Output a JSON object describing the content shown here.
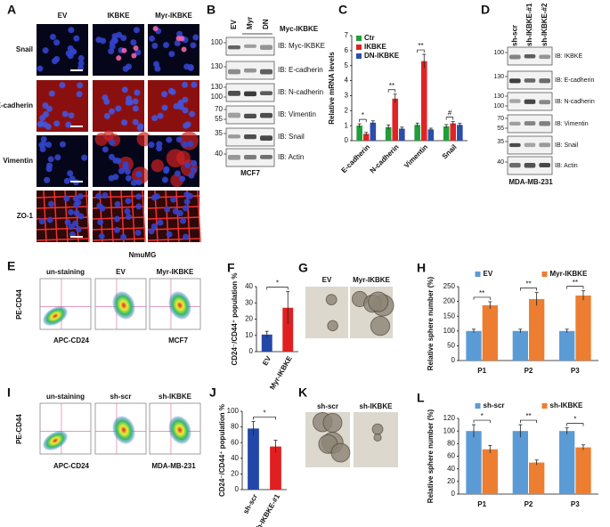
{
  "panels": {
    "A": {
      "letter": "A",
      "columns": [
        "EV",
        "IKBKE",
        "Myr-IKBKE"
      ],
      "rows": [
        "Snail",
        "E-cadherin",
        "Vimentin",
        "ZO-1"
      ],
      "caption": "NmuMG"
    },
    "B": {
      "letter": "B",
      "lanes": [
        "EV",
        "Myr",
        "DN"
      ],
      "group": "Myc-IKBKE",
      "blots": [
        {
          "label": "IB: Myc-IKBKE",
          "markers": [
            "100"
          ]
        },
        {
          "label": "IB: E-cadherin",
          "markers": [
            "130"
          ]
        },
        {
          "label": "IB: N-cadherin",
          "markers": [
            "130",
            "100"
          ]
        },
        {
          "label": "IB: Vimentin",
          "markers": [
            "70",
            "55"
          ]
        },
        {
          "label": "IB: Snail",
          "markers": [
            "35"
          ]
        },
        {
          "label": "IB: Actin",
          "markers": [
            "40"
          ]
        }
      ],
      "caption": "MCF7"
    },
    "C": {
      "letter": "C"
    },
    "D": {
      "letter": "D",
      "lanes": [
        "sh-scr",
        "sh-IKBKE-#1",
        "sh-IKBKE-#2"
      ],
      "blots": [
        {
          "label": "IB: IKBKE",
          "markers": [
            "100"
          ]
        },
        {
          "label": "IB: E-cadherin",
          "markers": [
            "130"
          ]
        },
        {
          "label": "IB: N-cadherin",
          "markers": [
            "130",
            "100"
          ]
        },
        {
          "label": "IB: Vimentin",
          "markers": [
            "70",
            "55"
          ]
        },
        {
          "label": "IB: Snail",
          "markers": [
            "35"
          ]
        },
        {
          "label": "IB: Actin",
          "markers": [
            "40"
          ]
        }
      ],
      "caption": "MDA-MB-231"
    },
    "E": {
      "letter": "E",
      "plots": [
        "un-staining",
        "EV",
        "Myr-IKBKE"
      ],
      "y_label": "PE-CD44",
      "x_label": "APC-CD24",
      "caption": "MCF7"
    },
    "F": {
      "letter": "F"
    },
    "G": {
      "letter": "G",
      "images": [
        "EV",
        "Myr-IKBKE"
      ]
    },
    "H": {
      "letter": "H"
    },
    "I": {
      "letter": "I",
      "plots": [
        "un-staining",
        "sh-scr",
        "sh-IKBKE"
      ],
      "y_label": "PE-CD44",
      "x_label": "APC-CD24",
      "caption": "MDA-MB-231"
    },
    "J": {
      "letter": "J"
    },
    "K": {
      "letter": "K",
      "images": [
        "sh-scr",
        "sh-IKBKE"
      ]
    },
    "L": {
      "letter": "L"
    }
  },
  "chart_data": [
    {
      "type": "bar",
      "y_label": "Relative mRNA levels",
      "categories": [
        "E-cadherin",
        "N-cadherin",
        "Vimentin",
        "Snail"
      ],
      "series": [
        {
          "name": "Ctr",
          "color": "#1f9e3a",
          "values": [
            1.0,
            0.9,
            1.05,
            0.95
          ],
          "errors": [
            0.12,
            0.15,
            0.12,
            0.12
          ]
        },
        {
          "name": "IKBKE",
          "color": "#e02424",
          "values": [
            0.45,
            2.8,
            5.3,
            1.15
          ],
          "errors": [
            0.1,
            0.3,
            0.45,
            0.12
          ]
        },
        {
          "name": "DN-IKBKE",
          "color": "#2c4ea8",
          "values": [
            1.2,
            0.8,
            0.75,
            1.05
          ],
          "errors": [
            0.12,
            0.1,
            0.08,
            0.1
          ]
        }
      ],
      "ylim": [
        0,
        7
      ],
      "yticks": [
        0,
        1,
        2,
        3,
        4,
        5,
        6,
        7
      ],
      "annotations": [
        "*",
        "**",
        "**",
        "#"
      ],
      "legend": "upper left"
    },
    {
      "type": "bar",
      "y_label": "CD24⁻/CD44⁺ population %",
      "categories": [
        "EV",
        "Myr-IKBKE"
      ],
      "values": [
        10.5,
        27
      ],
      "errors": [
        2,
        10
      ],
      "colors": [
        "#2347a8",
        "#e02020"
      ],
      "ylim": [
        0,
        40
      ],
      "yticks": [
        0,
        10,
        20,
        30,
        40
      ],
      "annotations": [
        "*"
      ]
    },
    {
      "type": "bar",
      "y_label": "Relative sphere number (%)",
      "categories": [
        "P1",
        "P2",
        "P3"
      ],
      "series": [
        {
          "name": "EV",
          "color": "#5b9bd5",
          "values": [
            100,
            100,
            100
          ],
          "errors": [
            6,
            6,
            6
          ]
        },
        {
          "name": "Myr-IKBKE",
          "color": "#ed7d31",
          "values": [
            187,
            208,
            220
          ],
          "errors": [
            12,
            22,
            16
          ]
        }
      ],
      "ylim": [
        0,
        250
      ],
      "yticks": [
        0,
        50,
        100,
        150,
        200,
        250
      ],
      "annotations": [
        "**",
        "**",
        "**"
      ],
      "legend": "top"
    },
    {
      "type": "bar",
      "y_label": "CD24⁻/CD44⁺ population %",
      "categories": [
        "sh-scr",
        "sh-IKBKE-#1"
      ],
      "values": [
        78,
        55
      ],
      "errors": [
        9,
        8
      ],
      "colors": [
        "#2347a8",
        "#e02020"
      ],
      "ylim": [
        0,
        100
      ],
      "yticks": [
        0,
        20,
        40,
        60,
        80,
        100
      ],
      "annotations": [
        "*"
      ]
    },
    {
      "type": "bar",
      "y_label": "Relative sphere number (%)",
      "categories": [
        "P1",
        "P2",
        "P3"
      ],
      "series": [
        {
          "name": "sh-scr",
          "color": "#5b9bd5",
          "values": [
            100,
            100,
            100
          ],
          "errors": [
            10,
            10,
            5
          ]
        },
        {
          "name": "sh-IKBKE",
          "color": "#ed7d31",
          "values": [
            71,
            50,
            74
          ],
          "errors": [
            6,
            4,
            4
          ]
        }
      ],
      "ylim": [
        0,
        120
      ],
      "yticks": [
        0,
        20,
        40,
        60,
        80,
        100,
        120
      ],
      "annotations": [
        "*",
        "**",
        "*"
      ],
      "legend": "top"
    }
  ]
}
